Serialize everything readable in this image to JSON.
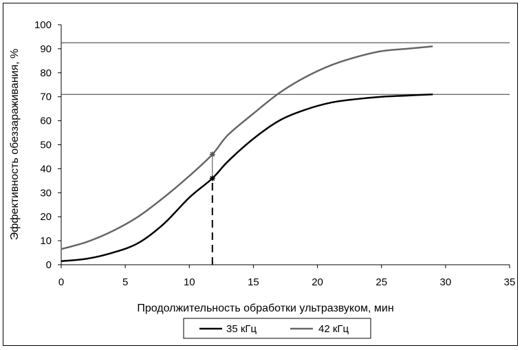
{
  "chart_data": {
    "type": "line",
    "xlabel": "Продолжительность обработки ультразвуком, мин",
    "ylabel": "Эффективность обеззараживания, %",
    "xlim": [
      0,
      35
    ],
    "ylim": [
      0,
      100
    ],
    "xticks": [
      0,
      5,
      10,
      15,
      20,
      25,
      30,
      35
    ],
    "yticks": [
      0,
      10,
      20,
      30,
      40,
      50,
      60,
      70,
      80,
      90,
      100
    ],
    "grid": false,
    "legend_position": "bottom-center",
    "series": [
      {
        "name": "35 кГц",
        "color": "#000000",
        "x": [
          0,
          2,
          4,
          6,
          8,
          10,
          11.8,
          13,
          15,
          17,
          19,
          21,
          23,
          25,
          27,
          29
        ],
        "y": [
          1.5,
          2.5,
          5,
          9,
          17,
          28,
          36,
          43,
          52.5,
          60,
          64.5,
          67.5,
          69,
          70,
          70.5,
          71
        ]
      },
      {
        "name": "42 кГц",
        "color": "#666666",
        "x": [
          0,
          2,
          4,
          6,
          8,
          10,
          11.8,
          13,
          15,
          17,
          19,
          21,
          23,
          25,
          27,
          29
        ],
        "y": [
          6.5,
          9.5,
          14,
          20,
          28,
          37,
          46,
          54,
          63,
          71.5,
          78,
          83,
          86.5,
          89,
          90,
          91
        ]
      }
    ],
    "reference_lines": [
      {
        "y": 92.5,
        "color": "#333333"
      },
      {
        "y": 71,
        "color": "#333333"
      }
    ],
    "marker": {
      "x": 11.8,
      "y_lower": 36,
      "y_upper": 46
    }
  }
}
